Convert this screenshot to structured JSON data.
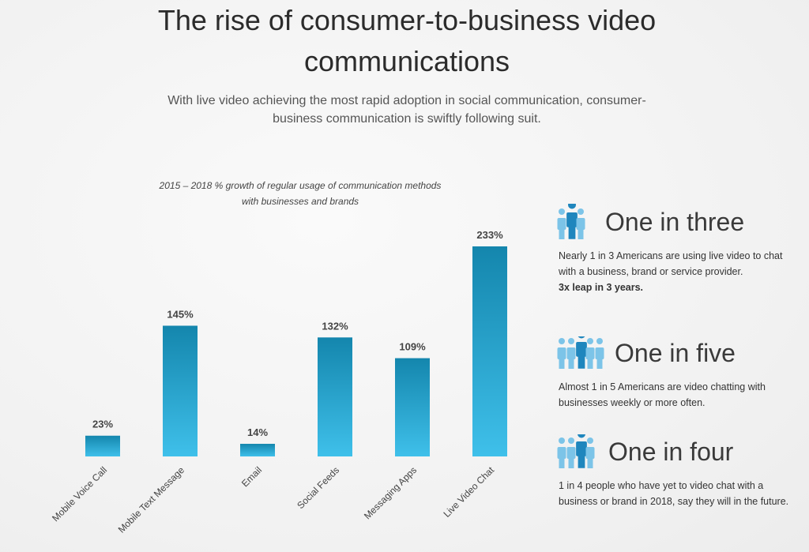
{
  "header": {
    "title": "The rise of consumer-to-business video communications",
    "subtitle": "With live video achieving the most rapid adoption in social communication, consumer-business communication is swiftly following suit."
  },
  "chart_data": {
    "type": "bar",
    "title": "2015 – 2018 % growth of regular usage of communication methods with businesses and brands",
    "categories": [
      "Mobile Voice Call",
      "Mobile Text Message",
      "Email",
      "Social Feeds",
      "Messaging Apps",
      "Live Video Chat"
    ],
    "values": [
      23,
      145,
      14,
      132,
      109,
      233
    ],
    "value_labels": [
      "23%",
      "145%",
      "14%",
      "132%",
      "109%",
      "233%"
    ],
    "color": "#3fc0ea"
  },
  "stats": [
    {
      "heading": "One in three",
      "text": "Nearly 1 in 3 Americans are using live video to chat with a business, brand or service provider.",
      "emphasis": "3x leap in 3 years."
    },
    {
      "heading": "One in five",
      "text": "Almost 1 in 5 Americans are video chatting with businesses weekly or more often."
    },
    {
      "heading": "One in four",
      "text": "1 in 4 people who have yet to video chat with a business or brand in 2018, say they will in the future."
    }
  ]
}
